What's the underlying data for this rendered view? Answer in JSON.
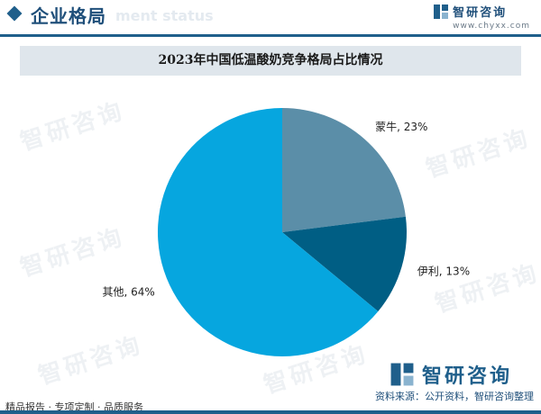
{
  "header": {
    "section_title": "企业格局",
    "section_subtitle": "ment status",
    "brand_name": "智研咨询",
    "brand_url": "www.chyxx.com"
  },
  "chart_data": {
    "type": "pie",
    "title": "2023年中国低温酸奶竞争格局占比情况",
    "slices": [
      {
        "label": "蒙牛",
        "value": 23,
        "display": "蒙牛, 23%",
        "color": "#5b8ea8"
      },
      {
        "label": "伊利",
        "value": 13,
        "display": "伊利, 13%",
        "color": "#005e84"
      },
      {
        "label": "其他",
        "value": 64,
        "display": "其他, 64%",
        "color": "#06a6df"
      }
    ],
    "start_angle_deg": 0,
    "direction": "clockwise"
  },
  "footer": {
    "left_text": "精品报告 · 专项定制 · 品质服务",
    "right_text": "资料来源：公开资料，智研咨询整理",
    "brand_name": "智研咨询"
  }
}
